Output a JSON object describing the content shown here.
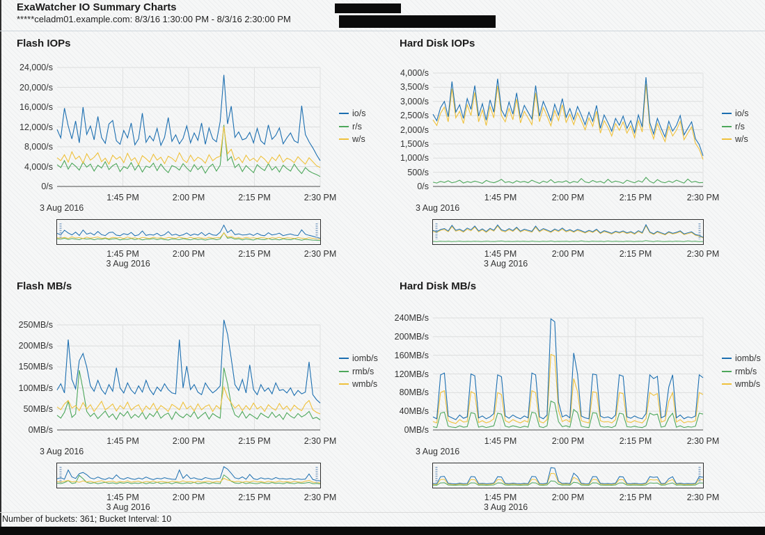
{
  "header": {
    "title": "ExaWatcher IO Summary Charts",
    "subtitle": "*****celadm01.example.com: 8/3/16 1:30:00 PM - 8/3/16 2:30:00 PM"
  },
  "footer": {
    "text": "Number of buckets: 361; Bucket Interval: 10"
  },
  "colors": {
    "io": "#1b6eb0",
    "read": "#4da75b",
    "write": "#efc13b",
    "redaction": "#0b0b0b"
  },
  "chart_data": [
    {
      "type": "line",
      "title": "Flash IOPs",
      "date": "3 Aug 2016",
      "xticks": [
        "1:45 PM",
        "2:00 PM",
        "2:15 PM",
        "2:30 PM"
      ],
      "yticks": [
        "24,000/s",
        "20,000/s",
        "16,000/s",
        "12,000/s",
        "8,000/s",
        "4,000/s",
        "0/s"
      ],
      "ymax": 24000,
      "legend_position": "right",
      "grid": true,
      "series": [
        {
          "name": "io/s",
          "color": "#1b6eb0",
          "scale": 100,
          "values": [
            115,
            98,
            158,
            122,
            96,
            132,
            88,
            160,
            105,
            122,
            94,
            141,
            99,
            87,
            126,
            133,
            92,
            85,
            113,
            98,
            128,
            84,
            96,
            148,
            89,
            102,
            92,
            117,
            83,
            99,
            139,
            91,
            104,
            86,
            97,
            122,
            88,
            108,
            93,
            128,
            85,
            118,
            96,
            90,
            131,
            225,
            126,
            162,
            99,
            110,
            94,
            97,
            109,
            88,
            117,
            92,
            85,
            124,
            95,
            103,
            118,
            86,
            98,
            108,
            92,
            88,
            163,
            105,
            90,
            78,
            64,
            52
          ]
        },
        {
          "name": "r/s",
          "color": "#4da75b",
          "scale": 100,
          "values": [
            44,
            38,
            52,
            35,
            47,
            41,
            33,
            49,
            39,
            45,
            31,
            43,
            37,
            50,
            34,
            42,
            46,
            30,
            40,
            36,
            48,
            33,
            44,
            29,
            41,
            38,
            47,
            32,
            45,
            35,
            28,
            42,
            39,
            33,
            46,
            37,
            30,
            44,
            34,
            41,
            27,
            39,
            45,
            31,
            43,
            124,
            52,
            60,
            38,
            45,
            30,
            42,
            35,
            28,
            44,
            37,
            32,
            46,
            33,
            40,
            29,
            43,
            36,
            31,
            45,
            34,
            26,
            38,
            31,
            27,
            24,
            20
          ]
        },
        {
          "name": "w/s",
          "color": "#efc13b",
          "scale": 100,
          "values": [
            58,
            52,
            64,
            49,
            70,
            55,
            61,
            47,
            66,
            53,
            59,
            68,
            50,
            57,
            45,
            63,
            55,
            60,
            48,
            67,
            52,
            58,
            44,
            62,
            56,
            49,
            65,
            53,
            59,
            46,
            61,
            57,
            50,
            68,
            54,
            48,
            63,
            51,
            59,
            55,
            47,
            64,
            52,
            58,
            61,
            121,
            66,
            75,
            53,
            59,
            48,
            63,
            52,
            57,
            50,
            61,
            55,
            46,
            59,
            52,
            64,
            49,
            57,
            54,
            48,
            60,
            52,
            45,
            58,
            50,
            42,
            38
          ]
        }
      ]
    },
    {
      "type": "line",
      "title": "Hard Disk IOPs",
      "date": "3 Aug 2016",
      "xticks": [
        "1:45 PM",
        "2:00 PM",
        "2:15 PM",
        "2:30 PM"
      ],
      "yticks": [
        "4,000/s",
        "3,500/s",
        "3,000/s",
        "2,500/s",
        "2,000/s",
        "1,500/s",
        "1,000/s",
        "500/s",
        "0/s"
      ],
      "ymax": 4000,
      "legend_position": "right",
      "grid": true,
      "series": [
        {
          "name": "io/s",
          "color": "#1b6eb0",
          "scale": 10,
          "values": [
            255,
            232,
            278,
            300,
            246,
            370,
            262,
            288,
            240,
            310,
            272,
            356,
            248,
            292,
            234,
            305,
            262,
            380,
            270,
            246,
            298,
            255,
            330,
            242,
            286,
            262,
            238,
            356,
            248,
            300,
            268,
            232,
            290,
            252,
            310,
            244,
            275,
            236,
            282,
            252,
            218,
            262,
            230,
            286,
            205,
            252,
            225,
            195,
            240,
            216,
            248,
            205,
            232,
            190,
            252,
            210,
            385,
            225,
            185,
            240,
            205,
            175,
            230,
            195,
            215,
            250,
            182,
            205,
            228,
            168,
            148,
            108
          ]
        },
        {
          "name": "r/s",
          "color": "#4da75b",
          "scale": 10,
          "values": [
            15,
            12,
            18,
            14,
            20,
            13,
            16,
            22,
            12,
            17,
            14,
            19,
            15,
            11,
            21,
            16,
            13,
            18,
            25,
            14,
            17,
            12,
            20,
            15,
            18,
            13,
            22,
            16,
            11,
            19,
            14,
            24,
            13,
            17,
            15,
            20,
            12,
            18,
            14,
            28,
            16,
            13,
            21,
            15,
            18,
            12,
            25,
            14,
            19,
            16,
            11,
            22,
            17,
            13,
            20,
            15,
            32,
            18,
            12,
            24,
            16,
            13,
            19,
            14,
            22,
            17,
            12,
            26,
            15,
            18,
            13,
            14
          ]
        },
        {
          "name": "w/s",
          "color": "#efc13b",
          "scale": 10,
          "values": [
            235,
            215,
            258,
            280,
            228,
            345,
            242,
            265,
            222,
            288,
            250,
            332,
            228,
            270,
            215,
            282,
            242,
            355,
            250,
            228,
            275,
            235,
            308,
            224,
            265,
            242,
            218,
            330,
            228,
            278,
            248,
            214,
            268,
            232,
            288,
            226,
            255,
            218,
            260,
            232,
            200,
            242,
            212,
            265,
            188,
            232,
            208,
            178,
            222,
            198,
            228,
            188,
            214,
            172,
            232,
            192,
            362,
            208,
            168,
            222,
            188,
            158,
            212,
            178,
            198,
            230,
            165,
            188,
            210,
            152,
            132,
            95
          ]
        }
      ]
    },
    {
      "type": "line",
      "title": "Flash MB/s",
      "date": "3 Aug 2016",
      "xticks": [
        "1:45 PM",
        "2:00 PM",
        "2:15 PM",
        "2:30 PM"
      ],
      "yticks": [
        "250MB/s",
        "200MB/s",
        "150MB/s",
        "100MB/s",
        "50MB/s",
        "0MB/s"
      ],
      "ymax": 250,
      "legend_position": "right",
      "grid": true,
      "series": [
        {
          "name": "iomb/s",
          "color": "#1b6eb0",
          "scale": 1,
          "values": [
            95,
            110,
            88,
            215,
            120,
            98,
            165,
            182,
            150,
            105,
            92,
            118,
            96,
            85,
            108,
            92,
            148,
            100,
            88,
            112,
            95,
            86,
            105,
            90,
            118,
            96,
            84,
            102,
            92,
            110,
            96,
            88,
            86,
            215,
            100,
            152,
            96,
            108,
            90,
            84,
            112,
            98,
            88,
            95,
            105,
            262,
            228,
            170,
            108,
            94,
            120,
            88,
            155,
            96,
            84,
            108,
            92,
            100,
            86,
            112,
            94,
            96,
            88,
            100,
            82,
            94,
            86,
            90,
            162,
            84,
            72,
            64
          ]
        },
        {
          "name": "rmb/s",
          "color": "#4da75b",
          "scale": 1,
          "values": [
            35,
            28,
            42,
            68,
            30,
            38,
            142,
            96,
            44,
            32,
            40,
            27,
            36,
            45,
            30,
            38,
            25,
            41,
            33,
            44,
            28,
            37,
            30,
            42,
            26,
            39,
            32,
            45,
            28,
            36,
            40,
            25,
            43,
            34,
            29,
            38,
            31,
            44,
            27,
            35,
            42,
            26,
            39,
            33,
            28,
            148,
            110,
            60,
            36,
            30,
            44,
            28,
            38,
            32,
            26,
            40,
            34,
            29,
            42,
            30,
            37,
            25,
            41,
            33,
            28,
            39,
            31,
            36,
            44,
            27,
            30,
            24
          ]
        },
        {
          "name": "wmb/s",
          "color": "#efc13b",
          "scale": 1,
          "values": [
            55,
            48,
            62,
            70,
            52,
            58,
            46,
            65,
            50,
            60,
            44,
            56,
            68,
            48,
            54,
            62,
            45,
            58,
            50,
            66,
            47,
            55,
            60,
            43,
            57,
            49,
            63,
            46,
            58,
            52,
            44,
            61,
            55,
            48,
            66,
            50,
            57,
            45,
            62,
            48,
            56,
            60,
            44,
            58,
            50,
            102,
            78,
            64,
            52,
            60,
            46,
            58,
            48,
            64,
            50,
            56,
            44,
            60,
            52,
            47,
            63,
            49,
            57,
            45,
            59,
            51,
            46,
            62,
            70,
            48,
            42,
            38
          ]
        }
      ]
    },
    {
      "type": "line",
      "title": "Hard Disk MB/s",
      "date": "3 Aug 2016",
      "xticks": [
        "1:45 PM",
        "2:00 PM",
        "2:15 PM",
        "2:30 PM"
      ],
      "yticks": [
        "240MB/s",
        "200MB/s",
        "160MB/s",
        "120MB/s",
        "80MB/s",
        "40MB/s",
        "0MB/s"
      ],
      "ymax": 240,
      "legend_position": "right",
      "grid": true,
      "series": [
        {
          "name": "iomb/s",
          "color": "#1b6eb0",
          "scale": 1,
          "values": [
            28,
            24,
            118,
            122,
            30,
            26,
            22,
            32,
            25,
            28,
            120,
            116,
            26,
            30,
            24,
            28,
            35,
            118,
            114,
            30,
            25,
            32,
            27,
            24,
            30,
            26,
            122,
            118,
            28,
            24,
            32,
            238,
            232,
            60,
            28,
            32,
            26,
            165,
            120,
            30,
            26,
            24,
            120,
            118,
            30,
            26,
            28,
            24,
            32,
            118,
            115,
            28,
            25,
            30,
            26,
            24,
            35,
            118,
            110,
            115,
            26,
            30,
            92,
            118,
            26,
            32,
            24,
            28,
            26,
            30,
            118,
            112
          ]
        },
        {
          "name": "rmb/s",
          "color": "#4da75b",
          "scale": 1,
          "values": [
            7,
            5,
            36,
            38,
            8,
            6,
            5,
            9,
            6,
            7,
            37,
            35,
            6,
            8,
            5,
            7,
            9,
            36,
            34,
            8,
            6,
            9,
            7,
            5,
            8,
            6,
            38,
            36,
            7,
            5,
            9,
            62,
            58,
            18,
            7,
            9,
            6,
            44,
            37,
            8,
            6,
            5,
            37,
            36,
            8,
            6,
            7,
            5,
            9,
            36,
            34,
            7,
            6,
            8,
            6,
            5,
            9,
            36,
            32,
            34,
            6,
            8,
            26,
            36,
            6,
            9,
            5,
            7,
            6,
            8,
            36,
            34
          ]
        },
        {
          "name": "wmb/s",
          "color": "#efc13b",
          "scale": 1,
          "values": [
            18,
            15,
            80,
            84,
            20,
            16,
            14,
            22,
            17,
            18,
            82,
            78,
            16,
            20,
            15,
            18,
            24,
            80,
            76,
            20,
            16,
            22,
            18,
            15,
            20,
            17,
            84,
            80,
            18,
            15,
            22,
            162,
            158,
            42,
            18,
            22,
            17,
            110,
            82,
            20,
            17,
            15,
            82,
            80,
            20,
            17,
            18,
            15,
            22,
            80,
            78,
            18,
            16,
            20,
            17,
            15,
            24,
            80,
            74,
            78,
            17,
            20,
            62,
            80,
            17,
            22,
            15,
            18,
            17,
            20,
            80,
            76
          ]
        }
      ]
    }
  ]
}
